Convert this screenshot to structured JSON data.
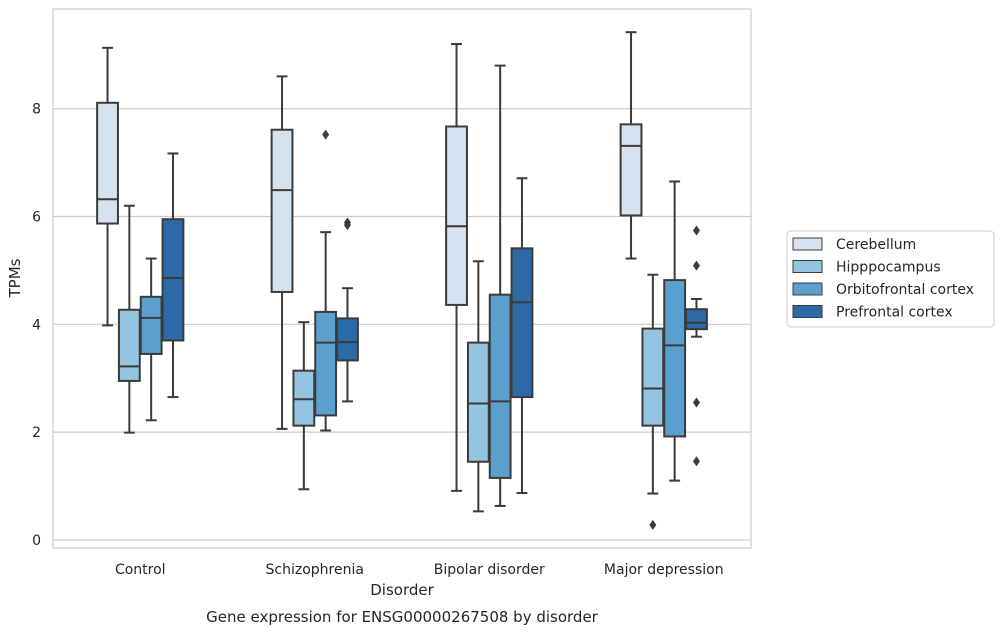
{
  "chart_data": {
    "type": "box",
    "xlabel": "Disorder",
    "ylabel": "TPMs",
    "caption": "Gene expression for ENSG00000267508 by disorder",
    "ylim": [
      -0.15,
      9.85
    ],
    "yticks": [
      "0",
      "2",
      "4",
      "6",
      "8"
    ],
    "grid": "horizontal",
    "legend_position": "right",
    "categories": [
      "Control",
      "Schizophrenia",
      "Bipolar disorder",
      "Major depression"
    ],
    "series": [
      {
        "name": "Cerebellum",
        "color": "#d5e3f1",
        "boxes": [
          {
            "whisker_low": 3.98,
            "q1": 5.87,
            "median": 6.32,
            "q3": 8.11,
            "whisker_high": 9.13,
            "outliers": []
          },
          {
            "whisker_low": 2.06,
            "q1": 4.6,
            "median": 6.49,
            "q3": 7.61,
            "whisker_high": 8.6,
            "outliers": []
          },
          {
            "whisker_low": 0.91,
            "q1": 4.36,
            "median": 5.82,
            "q3": 7.67,
            "whisker_high": 9.2,
            "outliers": []
          },
          {
            "whisker_low": 5.22,
            "q1": 6.02,
            "median": 7.31,
            "q3": 7.71,
            "whisker_high": 9.42,
            "outliers": []
          }
        ]
      },
      {
        "name": "Hipppocampus",
        "color": "#94c4df",
        "boxes": [
          {
            "whisker_low": 1.99,
            "q1": 2.95,
            "median": 3.22,
            "q3": 4.27,
            "whisker_high": 6.2,
            "outliers": []
          },
          {
            "whisker_low": 0.94,
            "q1": 2.12,
            "median": 2.61,
            "q3": 3.14,
            "whisker_high": 4.04,
            "outliers": []
          },
          {
            "whisker_low": 0.53,
            "q1": 1.45,
            "median": 2.53,
            "q3": 3.66,
            "whisker_high": 5.17,
            "outliers": []
          },
          {
            "whisker_low": 0.86,
            "q1": 2.12,
            "median": 2.81,
            "q3": 3.92,
            "whisker_high": 4.92,
            "outliers": [
              0.28
            ]
          }
        ]
      },
      {
        "name": "Orbitofrontal cortex",
        "color": "#5a9fcd",
        "boxes": [
          {
            "whisker_low": 2.22,
            "q1": 3.45,
            "median": 4.12,
            "q3": 4.51,
            "whisker_high": 5.22,
            "outliers": []
          },
          {
            "whisker_low": 2.03,
            "q1": 2.31,
            "median": 3.66,
            "q3": 4.23,
            "whisker_high": 5.71,
            "outliers": [
              7.52
            ]
          },
          {
            "whisker_low": 0.63,
            "q1": 1.15,
            "median": 2.57,
            "q3": 4.55,
            "whisker_high": 8.8,
            "outliers": []
          },
          {
            "whisker_low": 1.1,
            "q1": 1.92,
            "median": 3.61,
            "q3": 4.82,
            "whisker_high": 6.65,
            "outliers": []
          }
        ]
      },
      {
        "name": "Prefrontal cortex",
        "color": "#2b69a7",
        "boxes": [
          {
            "whisker_low": 2.65,
            "q1": 3.7,
            "median": 4.86,
            "q3": 5.95,
            "whisker_high": 7.17,
            "outliers": []
          },
          {
            "whisker_low": 2.57,
            "q1": 3.33,
            "median": 3.67,
            "q3": 4.11,
            "whisker_high": 4.67,
            "outliers": [
              5.84,
              5.89
            ]
          },
          {
            "whisker_low": 0.87,
            "q1": 2.65,
            "median": 4.41,
            "q3": 5.41,
            "whisker_high": 6.71,
            "outliers": []
          },
          {
            "whisker_low": 3.77,
            "q1": 3.91,
            "median": 4.03,
            "q3": 4.28,
            "whisker_high": 4.47,
            "outliers": [
              5.74,
              5.09,
              2.55,
              1.46
            ]
          }
        ]
      }
    ]
  }
}
